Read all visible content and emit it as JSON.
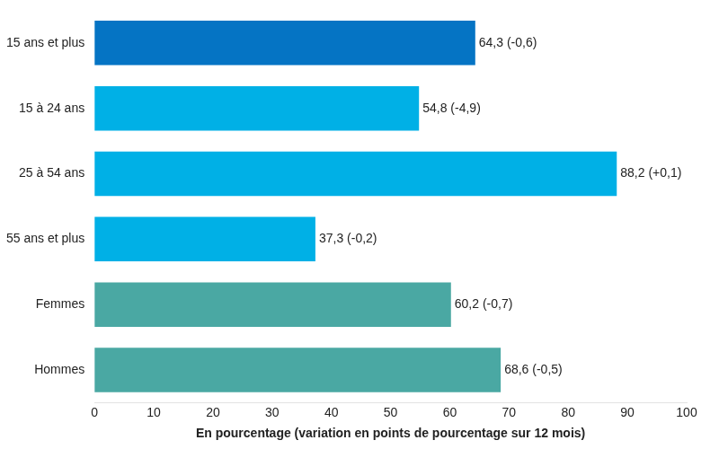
{
  "chart_data": {
    "type": "bar",
    "orientation": "horizontal",
    "categories": [
      "15 ans et plus",
      "15 à 24 ans",
      "25 à 54 ans",
      "55 ans et plus",
      "Femmes",
      "Hommes"
    ],
    "values": [
      64.3,
      54.8,
      88.2,
      37.3,
      60.2,
      68.6
    ],
    "value_labels": [
      "64,3 (-0,6)",
      "54,8 (-4,9)",
      "88,2 (+0,1)",
      "37,3 (-0,2)",
      "60,2 (-0,7)",
      "68,6 (-0,5)"
    ],
    "colors": [
      "#0574c4",
      "#00b0e6",
      "#00b0e6",
      "#00b0e6",
      "#4aa8a3",
      "#4aa8a3"
    ],
    "xlabel": "En pourcentage (variation en points de pourcentage sur 12 mois)",
    "xlim": [
      0,
      100
    ],
    "xticks": [
      0,
      10,
      20,
      30,
      40,
      50,
      60,
      70,
      80,
      90,
      100
    ],
    "grid": false,
    "data_labels": true
  }
}
